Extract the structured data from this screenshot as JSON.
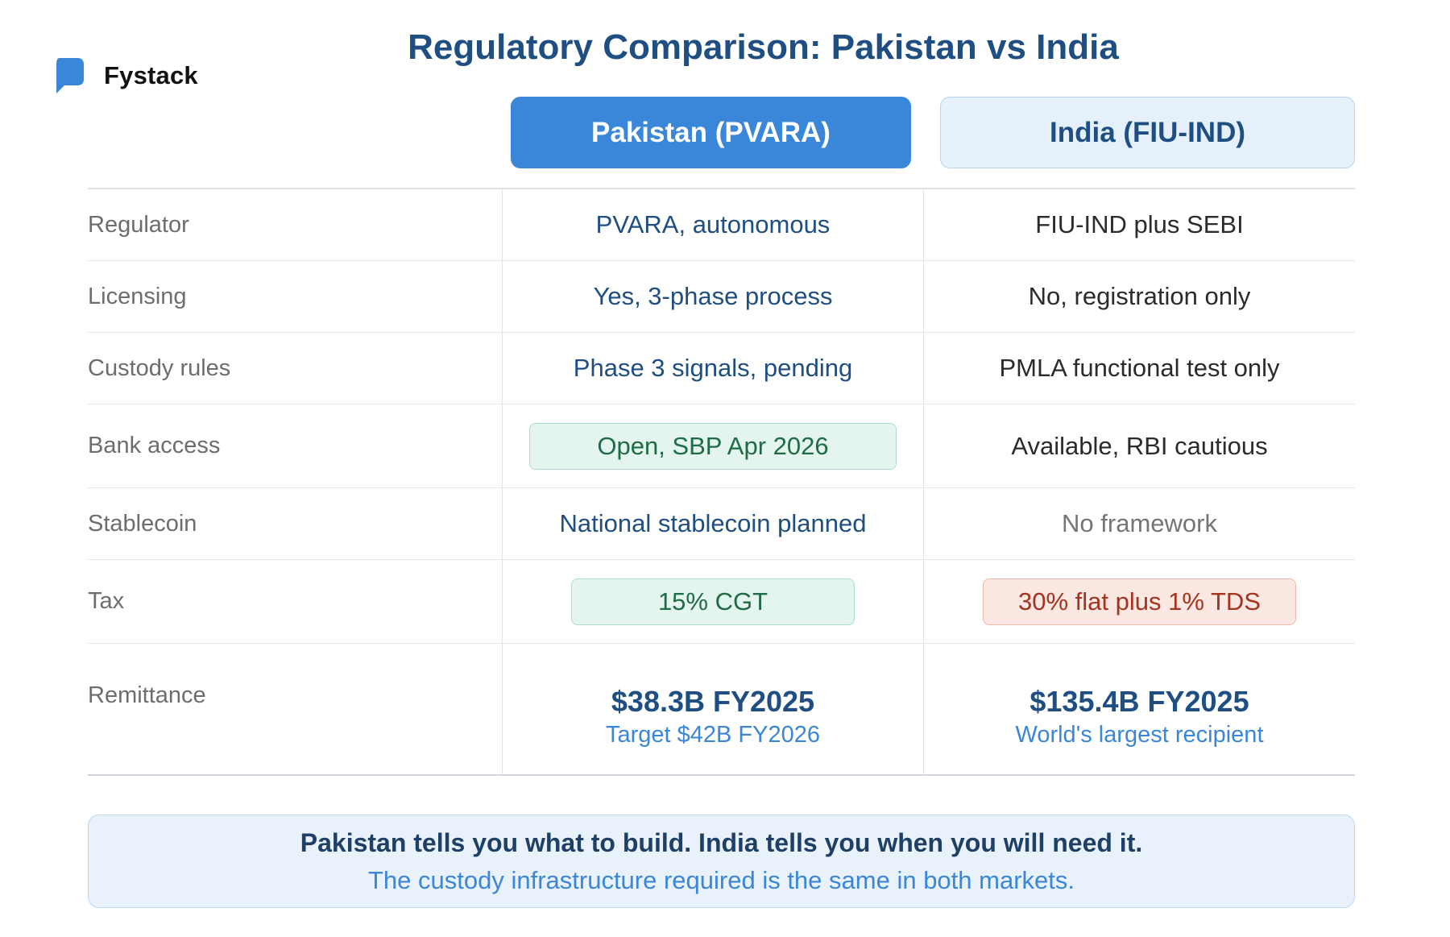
{
  "brand": {
    "name": "Fystack",
    "icon": "chat-bubble-logo",
    "color": "#3a86d8"
  },
  "title": "Regulatory Comparison: Pakistan vs India",
  "columns": {
    "pakistan": "Pakistan (PVARA)",
    "india": "India (FIU-IND)"
  },
  "rows": [
    {
      "label": "Regulator",
      "pakistan": "PVARA, autonomous",
      "india": "FIU-IND plus SEBI"
    },
    {
      "label": "Licensing",
      "pakistan": "Yes, 3-phase process",
      "india": "No, registration only"
    },
    {
      "label": "Custody rules",
      "pakistan": "Phase 3 signals, pending",
      "india": "PMLA functional test only"
    },
    {
      "label": "Bank access",
      "pakistan": "Open, SBP Apr 2026",
      "india": "Available, RBI cautious"
    },
    {
      "label": "Stablecoin",
      "pakistan": "National stablecoin planned",
      "india": "No framework"
    },
    {
      "label": "Tax",
      "pakistan": "15% CGT",
      "india": "30% flat plus 1% TDS"
    },
    {
      "label": "Remittance",
      "pakistan": {
        "value": "$38.3B FY2025",
        "note": "Target $42B FY2026"
      },
      "india": {
        "value": "$135.4B FY2025",
        "note": "World's largest recipient"
      }
    }
  ],
  "callout": {
    "main": "Pakistan tells you what to build. India tells you when you will need it.",
    "sub": "The custody infrastructure required is the same in both markets."
  },
  "colors": {
    "accent": "#3a86d8",
    "navy": "#1e4e82",
    "positive": "#1f6b45",
    "negative": "#a3341f"
  }
}
